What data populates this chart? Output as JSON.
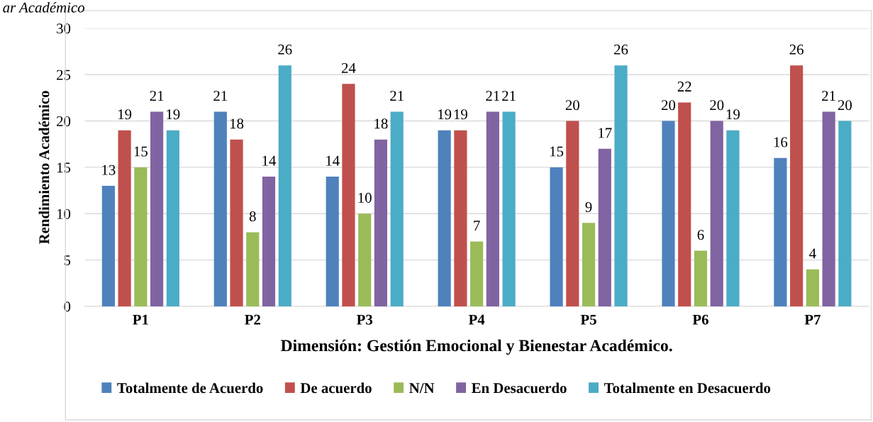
{
  "chart_data": {
    "type": "bar",
    "annotations": [
      "ar Académico"
    ],
    "xlabel": "Dimensión: Gestión Emocional y Bienestar Académico.",
    "ylabel": "Rendimiento Académico",
    "categories": [
      "P1",
      "P2",
      "P3",
      "P4",
      "P5",
      "P6",
      "P7"
    ],
    "series": [
      {
        "name": "Totalmente de Acuerdo",
        "color": "#4f81bd",
        "values": [
          13,
          21,
          14,
          19,
          15,
          20,
          16
        ]
      },
      {
        "name": "De acuerdo",
        "color": "#c0504d",
        "values": [
          19,
          18,
          24,
          19,
          20,
          22,
          26
        ]
      },
      {
        "name": "N/N",
        "color": "#9bbb59",
        "values": [
          15,
          8,
          10,
          7,
          9,
          6,
          4
        ]
      },
      {
        "name": "En Desacuerdo",
        "color": "#8064a2",
        "values": [
          21,
          14,
          18,
          21,
          17,
          20,
          21
        ]
      },
      {
        "name": "Totalmente en Desacuerdo",
        "color": "#4bacc6",
        "values": [
          19,
          26,
          21,
          21,
          26,
          19,
          20
        ]
      }
    ],
    "ylim": [
      0,
      30
    ],
    "yticks": [
      0,
      5,
      10,
      15,
      20,
      25,
      30
    ],
    "grid": "y",
    "legend": "bottom",
    "data_labels": true
  }
}
